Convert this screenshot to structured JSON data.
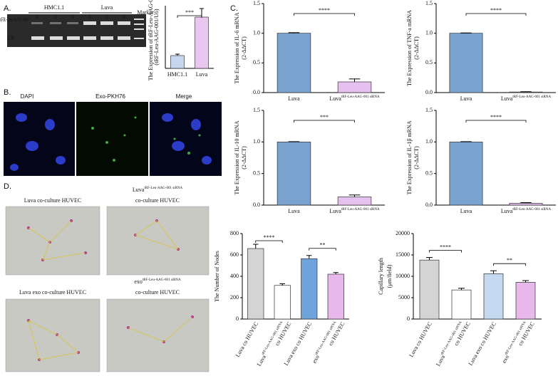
{
  "panels": {
    "a": "A.",
    "b": "B.",
    "c": "C.",
    "d": "D."
  },
  "gel": {
    "groups": [
      "HMC1.1",
      "Luva"
    ],
    "lanes": [
      "1",
      "2",
      "3",
      "1",
      "2",
      "3"
    ],
    "marker": "Marker",
    "rows": [
      "tFR-Leu-AAG-001",
      "U6"
    ]
  },
  "microscopy": {
    "labels": [
      "DAPI",
      "Exo-PKH76",
      "Merge"
    ]
  },
  "photos": [
    {
      "lines": [
        "Luva co-culture HUVEC"
      ]
    },
    {
      "base": "Luva",
      "sup": "tRF-Leu-AAG-001 siRNA",
      "lines": [
        "co-culture HUVEC"
      ]
    },
    {
      "lines": [
        "Luva exo co-culture HUVEC"
      ]
    },
    {
      "base": "exo",
      "sup": "tRF-Leu-AAG-001 siRNA",
      "lines": [
        "co-culture HUVEC"
      ]
    }
  ],
  "chart_data": [
    {
      "type": "bar",
      "ylabel": [
        "The Expression of tRF-Leu-AAG-001",
        "(tRF-Leu-AAG-001/U6)"
      ],
      "categories": [
        "HMC1.1",
        "Luva"
      ],
      "category_superscripts": [
        null,
        null
      ],
      "values": [
        0.45,
        1.8
      ],
      "errors": [
        0.05,
        0.3
      ],
      "colors": [
        "#c6d6ef",
        "#eac7f0"
      ],
      "ylim": [
        0,
        2.2
      ],
      "significance": [
        "***"
      ]
    },
    {
      "type": "bar",
      "ylabel": [
        "The Expression of IL-6 mRNA",
        "(2-ΔΔCT)"
      ],
      "categories": [
        "Luva",
        "Luva"
      ],
      "category_superscripts": [
        null,
        "tRF-Leu-AAG-001 siRNA"
      ],
      "values": [
        1.0,
        0.18
      ],
      "errors": [
        0.01,
        0.05
      ],
      "colors": [
        "#7ba3d0",
        "#e6c0ee"
      ],
      "ylim": [
        0,
        1.5
      ],
      "yticks": [
        {
          "value": 0,
          "label": "0.0"
        },
        {
          "value": 0.5,
          "label": "0.5"
        },
        {
          "value": 1,
          "label": "1.0"
        },
        {
          "value": 1.5,
          "label": "1.5"
        }
      ],
      "significance": [
        "****"
      ]
    },
    {
      "type": "bar",
      "ylabel": [
        "The Expression of TNF-a mRNA",
        "(2-ΔΔCT)"
      ],
      "categories": [
        "Luva",
        "Luva"
      ],
      "category_superscripts": [
        null,
        "tRF-Leu-AAG-001 siRNA"
      ],
      "values": [
        1.0,
        0.01
      ],
      "errors": [
        0.005,
        0.005
      ],
      "colors": [
        "#7ba3d0",
        "#e6c0ee"
      ],
      "ylim": [
        0,
        1.5
      ],
      "yticks": [
        {
          "value": 0,
          "label": "0.0"
        },
        {
          "value": 0.5,
          "label": "0.5"
        },
        {
          "value": 1,
          "label": "1.0"
        },
        {
          "value": 1.5,
          "label": "1.5"
        }
      ],
      "significance": [
        "****"
      ]
    },
    {
      "type": "bar",
      "ylabel": [
        "The Expression of IL-10 mRNA",
        "(2-ΔΔCT)"
      ],
      "categories": [
        "Luva",
        "Luva"
      ],
      "category_superscripts": [
        null,
        "tRF-Leu-AAG-001 siRNA"
      ],
      "values": [
        1.0,
        0.13
      ],
      "errors": [
        0.005,
        0.03
      ],
      "colors": [
        "#7ba3d0",
        "#e6c0ee"
      ],
      "ylim": [
        0,
        1.5
      ],
      "yticks": [
        {
          "value": 0,
          "label": "0.0"
        },
        {
          "value": 0.5,
          "label": "0.5"
        },
        {
          "value": 1,
          "label": "1.0"
        },
        {
          "value": 1.5,
          "label": "1.5"
        }
      ],
      "significance": [
        "***"
      ]
    },
    {
      "type": "bar",
      "ylabel": [
        "The Expression of IL-1β mRNA",
        "(2-ΔΔCT)"
      ],
      "categories": [
        "Luva",
        "Luva"
      ],
      "category_superscripts": [
        null,
        "tRF-Leu-AAG-001 siRNA"
      ],
      "values": [
        1.0,
        0.03
      ],
      "errors": [
        0.005,
        0.01
      ],
      "colors": [
        "#7ba3d0",
        "#e6c0ee"
      ],
      "ylim": [
        0,
        1.5
      ],
      "yticks": [
        {
          "value": 0,
          "label": "0.0"
        },
        {
          "value": 0.5,
          "label": "0.5"
        },
        {
          "value": 1,
          "label": "1.0"
        },
        {
          "value": 1.5,
          "label": "1.5"
        }
      ],
      "significance": [
        "****"
      ]
    },
    {
      "type": "bar",
      "ylabel": [
        "The Number of Nodes"
      ],
      "categories": [
        "Luva co HUVEC",
        "Luva",
        "Luva exo co HUVEC",
        "exo"
      ],
      "category_superscripts": [
        null,
        "tRF-Leu-AAG-001 siRNA",
        null,
        "tRF-Leu-AAG-001 siRNA"
      ],
      "category_second_lines": [
        null,
        "co HUVEC",
        null,
        "co HUVEC"
      ],
      "values": [
        660,
        315,
        565,
        420
      ],
      "errors": [
        40,
        15,
        30,
        15
      ],
      "colors": [
        "#d4d4d4",
        "#ffffff",
        "#6fa3dc",
        "#e8b8ec"
      ],
      "ylim": [
        0,
        800
      ],
      "yticks": [
        0,
        200,
        400,
        600,
        800
      ],
      "significance": [
        "****",
        "**"
      ]
    },
    {
      "type": "bar",
      "ylabel": [
        "Capillary length",
        "(μm/field)"
      ],
      "categories": [
        "Luva co HUVEC",
        "Luva",
        "Luva exo co HUVEC",
        "exo"
      ],
      "category_superscripts": [
        null,
        "tRF-Leu-AAG-001 siRNA",
        null,
        "tRF-Leu-AAG-001 siRNA"
      ],
      "category_second_lines": [
        null,
        "co HUVEC",
        null,
        "co HUVEC"
      ],
      "values": [
        13800,
        6800,
        10600,
        8600
      ],
      "errors": [
        600,
        400,
        700,
        400
      ],
      "colors": [
        "#d4d4d4",
        "#ffffff",
        "#c5d9f1",
        "#e8b8ec"
      ],
      "ylim": [
        0,
        20000
      ],
      "yticks": [
        0,
        5000,
        10000,
        15000,
        20000
      ],
      "significance": [
        "****",
        "**"
      ]
    }
  ]
}
